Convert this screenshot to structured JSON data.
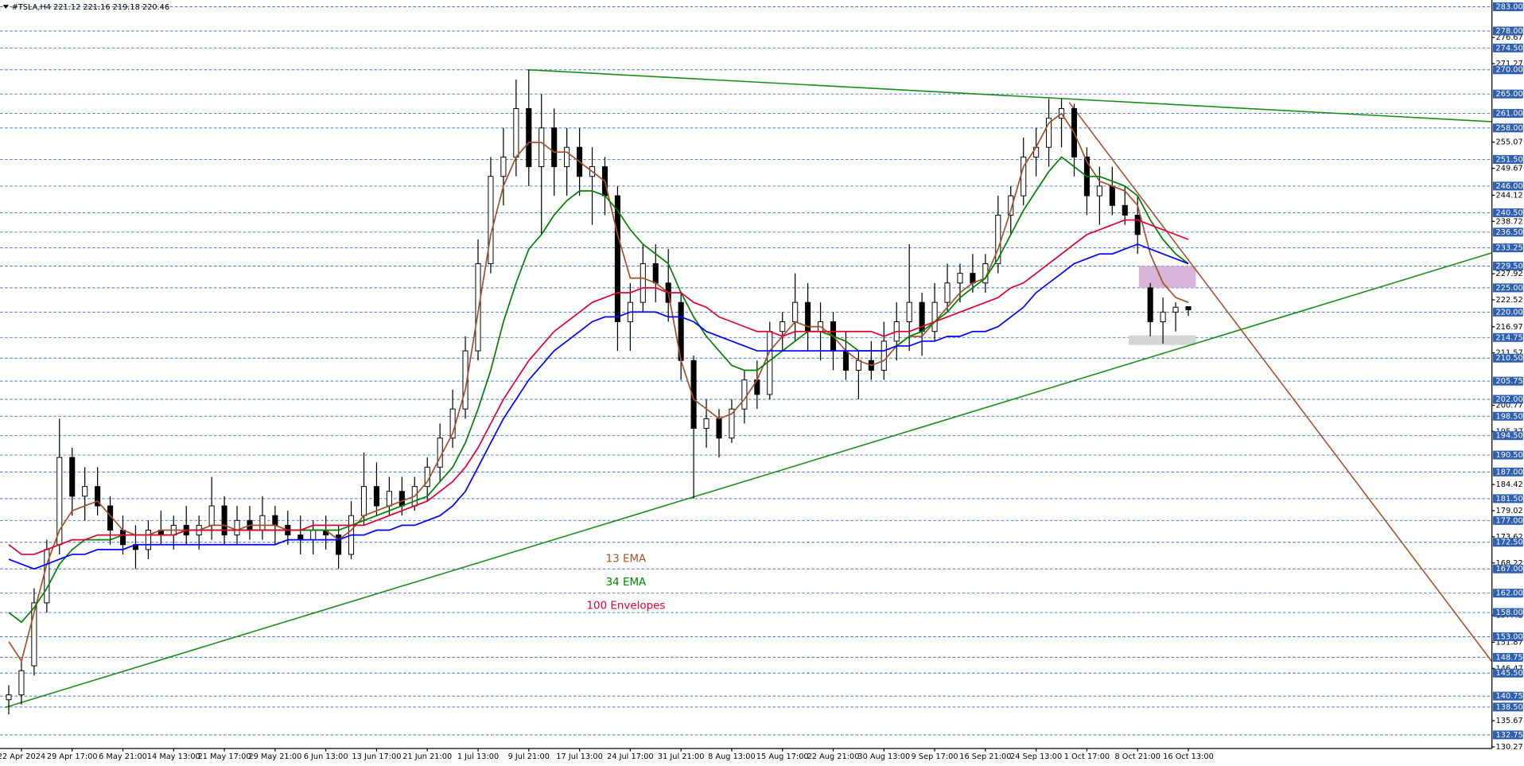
{
  "header": "#TSLA,H4  221.12 221.16 219.18 220.46",
  "chart_data": {
    "type": "candlestick",
    "categories": [
      null,
      "22 Apr 2024",
      null,
      null,
      null,
      "29 Apr 17:00",
      null,
      null,
      null,
      "6 May 21:00",
      null,
      null,
      null,
      "14 May 13:00",
      null,
      null,
      null,
      "21 May 17:00",
      null,
      null,
      null,
      "29 May 21:00",
      null,
      null,
      null,
      "6 Jun 13:00",
      null,
      null,
      null,
      "13 Jun 17:00",
      null,
      null,
      null,
      "21 Jun 21:00",
      null,
      null,
      null,
      "1 Jul 13:00",
      null,
      null,
      null,
      "9 Jul 21:00",
      null,
      null,
      null,
      "17 Jul 13:00",
      null,
      null,
      null,
      "24 Jul 17:00",
      null,
      null,
      null,
      "31 Jul 21:00",
      null,
      null,
      null,
      "8 Aug 13:00",
      null,
      null,
      null,
      "15 Aug 17:00",
      null,
      null,
      null,
      "22 Aug 21:00",
      null,
      null,
      null,
      "30 Aug 13:00",
      null,
      null,
      null,
      "9 Sep 17:00",
      null,
      null,
      null,
      "16 Sep 21:00",
      null,
      null,
      null,
      "24 Sep 13:00",
      null,
      null,
      null,
      "1 Oct 17:00",
      null,
      null,
      null,
      "8 Oct 21:00",
      null,
      null,
      null,
      "16 Oct 13:00"
    ],
    "open": [
      140,
      141,
      147,
      160,
      172,
      190,
      182,
      184,
      180,
      175,
      172,
      171,
      175,
      174,
      176,
      174,
      176,
      180,
      174,
      177,
      175,
      178,
      176,
      174,
      173,
      175,
      174,
      170,
      178,
      184,
      180,
      183,
      180,
      184,
      188,
      194,
      200,
      212,
      230,
      248,
      252,
      262,
      250,
      258,
      250,
      254,
      248,
      250,
      244,
      218,
      222,
      230,
      226,
      222,
      210,
      196,
      198,
      194,
      200,
      206,
      203,
      216,
      218,
      222,
      216,
      218,
      212,
      208,
      210,
      208,
      214,
      218,
      222,
      216,
      222,
      226,
      228,
      226,
      230,
      240,
      244,
      252,
      254,
      260,
      262,
      252,
      244,
      246,
      242,
      240,
      225,
      218,
      220,
      221.12
    ],
    "high": [
      143,
      148,
      163,
      173,
      198,
      192,
      188,
      188,
      182,
      178,
      176,
      177,
      179,
      178,
      180,
      178,
      186,
      182,
      180,
      180,
      182,
      180,
      179,
      178,
      177,
      178,
      176,
      181,
      191,
      189,
      186,
      186,
      186,
      190,
      197,
      204,
      215,
      235,
      252,
      258,
      268,
      270,
      265,
      262,
      258,
      258,
      254,
      252,
      246,
      226,
      234,
      234,
      233,
      224,
      211,
      202,
      200,
      202,
      208,
      210,
      218,
      220,
      228,
      226,
      222,
      220,
      216,
      212,
      214,
      218,
      222,
      234,
      224,
      226,
      230,
      230,
      232,
      232,
      244,
      246,
      256,
      258,
      264,
      264,
      263,
      254,
      250,
      250,
      246,
      244,
      226,
      223,
      222,
      221.16
    ],
    "low": [
      137,
      139,
      145,
      158,
      170,
      178,
      177,
      178,
      172,
      170,
      167,
      169,
      172,
      171,
      172,
      171,
      173,
      172,
      172,
      173,
      173,
      172,
      172,
      170,
      170,
      171,
      167,
      169,
      176,
      178,
      178,
      178,
      179,
      181,
      185,
      192,
      198,
      210,
      228,
      242,
      248,
      246,
      236,
      244,
      244,
      244,
      238,
      240,
      212,
      212,
      220,
      222,
      218,
      206,
      181.5,
      192,
      190,
      193,
      197,
      200,
      202,
      212,
      214,
      212,
      210,
      208,
      206,
      202,
      206,
      206,
      210,
      212,
      211,
      214,
      220,
      222,
      224,
      224,
      228,
      236,
      242,
      248,
      250,
      254,
      248,
      240,
      238,
      240,
      238,
      232,
      215,
      213.5,
      216,
      219.18
    ],
    "close": [
      141,
      146,
      160,
      171,
      190,
      182,
      184,
      180,
      175,
      172,
      171,
      175,
      174,
      176,
      174,
      176,
      180,
      174,
      177,
      175,
      178,
      176,
      174,
      173,
      175,
      174,
      170,
      178,
      184,
      180,
      183,
      180,
      184,
      188,
      194,
      200,
      212,
      230,
      248,
      252,
      262,
      250,
      258,
      250,
      254,
      248,
      250,
      244,
      218,
      222,
      230,
      226,
      222,
      210,
      196,
      198,
      194,
      200,
      206,
      203,
      216,
      218,
      222,
      216,
      218,
      212,
      208,
      210,
      208,
      214,
      218,
      222,
      216,
      222,
      226,
      228,
      226,
      230,
      240,
      244,
      252,
      254,
      260,
      262,
      252,
      244,
      246,
      242,
      240,
      236,
      218,
      220,
      221,
      220.46
    ],
    "series": [
      {
        "name": "13 EMA",
        "color": "#a0522d",
        "values": [
          152,
          148,
          158,
          168,
          175,
          179,
          180,
          181,
          178,
          175,
          174,
          174,
          175,
          175,
          175,
          175,
          176,
          176,
          175,
          176,
          176,
          176,
          175,
          175,
          175,
          175,
          173,
          175,
          178,
          179,
          180,
          181,
          182,
          185,
          190,
          195,
          204,
          220,
          236,
          246,
          252,
          255,
          255,
          253,
          253,
          251,
          249,
          247,
          236,
          227,
          227,
          226,
          224,
          210,
          202,
          200,
          198,
          199,
          202,
          206,
          212,
          215,
          218,
          217,
          217,
          215,
          212,
          210,
          209,
          210,
          213,
          215,
          215,
          218,
          221,
          224,
          226,
          227,
          233,
          241,
          250,
          254,
          259,
          261,
          257,
          251,
          247,
          246,
          245,
          242,
          232,
          226,
          223,
          222
        ]
      },
      {
        "name": "34 EMA",
        "color": "#008000",
        "values": [
          158,
          156,
          159,
          163,
          168,
          171,
          173,
          173,
          173,
          174,
          174,
          174,
          174,
          174,
          175,
          175,
          175,
          175,
          175,
          175,
          175,
          175,
          175,
          175,
          175,
          175,
          175,
          176,
          177,
          178,
          179,
          180,
          181,
          182,
          185,
          188,
          193,
          200,
          208,
          218,
          226,
          233,
          236,
          240,
          243,
          245,
          245,
          244,
          241,
          237,
          234,
          232,
          230,
          224,
          219,
          215,
          212,
          209,
          208,
          208,
          210,
          212,
          214,
          216,
          216,
          215,
          214,
          212,
          212,
          212,
          213,
          215,
          216,
          218,
          220,
          223,
          225,
          227,
          231,
          236,
          241,
          245,
          249,
          252,
          250,
          248,
          248,
          247,
          246,
          244,
          239,
          235,
          232,
          230
        ]
      },
      {
        "name": "100 Envelopes",
        "color": "#e00030",
        "values": [
          172,
          170,
          170,
          171,
          172,
          173,
          173,
          174,
          174,
          174,
          174,
          174,
          174,
          174,
          175,
          175,
          175,
          175,
          175,
          175,
          175,
          175,
          175,
          175,
          176,
          176,
          176,
          176,
          176,
          177,
          178,
          179,
          180,
          181,
          183,
          185,
          188,
          192,
          197,
          202,
          206,
          210,
          213,
          216,
          218,
          220,
          222,
          223,
          224,
          224,
          225,
          225,
          224,
          224,
          222,
          221,
          219,
          218,
          217,
          216,
          216,
          215,
          216,
          216,
          216,
          216,
          216,
          216,
          216,
          215,
          216,
          216,
          217,
          218,
          219,
          220,
          221,
          222,
          223,
          225,
          226,
          228,
          230,
          232,
          234,
          236,
          237,
          238,
          239,
          239,
          238,
          237,
          236,
          235
        ]
      },
      {
        "color": "#0000ff",
        "values": [
          169,
          168,
          167,
          168,
          169,
          170,
          170,
          171,
          171,
          171,
          172,
          172,
          172,
          172,
          172,
          172,
          172,
          172,
          172,
          172,
          172,
          172,
          173,
          173,
          173,
          173,
          173,
          174,
          174,
          175,
          175,
          176,
          176,
          177,
          178,
          180,
          183,
          188,
          193,
          198,
          202,
          206,
          209,
          212,
          214,
          216,
          218,
          219,
          219,
          220,
          220,
          220,
          219,
          219,
          218,
          216,
          215,
          214,
          213,
          212,
          212,
          212,
          212,
          212,
          212,
          212,
          212,
          212,
          212,
          212,
          213,
          213,
          214,
          214,
          215,
          215,
          216,
          216,
          217,
          219,
          221,
          224,
          226,
          228,
          230,
          231,
          232,
          232,
          233,
          234,
          233,
          232,
          231,
          230
        ]
      }
    ],
    "trendlines": [
      {
        "color": "#1a8c1a",
        "x": [
          40.9,
          116.9
        ],
        "y": [
          270,
          259.3
        ]
      },
      {
        "color": "#1a8c1a",
        "x": [
          -0.3,
          116.9
        ],
        "y": [
          138.4,
          232.2
        ]
      },
      {
        "color": "#a0522d",
        "x": [
          83.6,
          116.9
        ],
        "y": [
          263.3,
          148
        ]
      }
    ],
    "zones": [
      {
        "color": "#d8b4d8",
        "x": [
          89.1,
          93.6
        ],
        "y": [
          225,
          229.5
        ]
      },
      {
        "color": "#d6d6d6",
        "x": [
          88.3,
          93.6
        ],
        "y": [
          213.2,
          215.2
        ]
      }
    ],
    "ylim": [
      129.94,
      284.4
    ],
    "yticks": [
      276.67,
      271.27,
      255.07,
      249.67,
      244.12,
      238.72,
      227.92,
      222.52,
      216.97,
      211.57,
      200.77,
      195.37,
      184.42,
      179.02,
      173.62,
      168.22,
      157.42,
      151.87,
      146.47,
      135.67,
      130.27
    ],
    "levels": [
      {
        "value": 283,
        "label": "283.00"
      },
      {
        "value": 278,
        "label": "278.00"
      },
      {
        "value": 274.5,
        "label": "274.50"
      },
      {
        "value": 270,
        "label": "270.00"
      },
      {
        "value": 265,
        "label": "265.00"
      },
      {
        "value": 261,
        "label": "261.00"
      },
      {
        "value": 258,
        "label": "258.00"
      },
      {
        "value": 251.5,
        "label": "251.50"
      },
      {
        "value": 246,
        "label": "246.00"
      },
      {
        "value": 240.5,
        "label": "240.50"
      },
      {
        "value": 236.5,
        "label": "236.50"
      },
      {
        "value": 233.25,
        "label": "233.25"
      },
      {
        "value": 229.5,
        "label": "229.50"
      },
      {
        "value": 225,
        "label": "225.00"
      },
      {
        "value": 220,
        "label": "220.00"
      },
      {
        "value": 214.75,
        "label": "214.75"
      },
      {
        "value": 210.5,
        "label": "210.50"
      },
      {
        "value": 205.75,
        "label": "205.75"
      },
      {
        "value": 202,
        "label": "202.00"
      },
      {
        "value": 198.5,
        "label": "198.50"
      },
      {
        "value": 194.5,
        "label": "194.50"
      },
      {
        "value": 190.5,
        "label": "190.50"
      },
      {
        "value": 187,
        "label": "187.00"
      },
      {
        "value": 181.5,
        "label": "181.50"
      },
      {
        "value": 177,
        "label": "177.00"
      },
      {
        "value": 172.5,
        "label": "172.50"
      },
      {
        "value": 167,
        "label": "167.00"
      },
      {
        "value": 162,
        "label": "162.00"
      },
      {
        "value": 158,
        "label": "158.00"
      },
      {
        "value": 153,
        "label": "153.00"
      },
      {
        "value": 148.75,
        "label": "148.75"
      },
      {
        "value": 145.5,
        "label": "145.50"
      },
      {
        "value": 140.75,
        "label": "140.75"
      },
      {
        "value": 138.5,
        "label": "138.50"
      },
      {
        "value": 132.75,
        "label": "132.75"
      }
    ],
    "level_color": "#4a72c4",
    "level_label_color": "#2f5fb3",
    "up_color": "#ffffff",
    "down_color": "#000000"
  }
}
